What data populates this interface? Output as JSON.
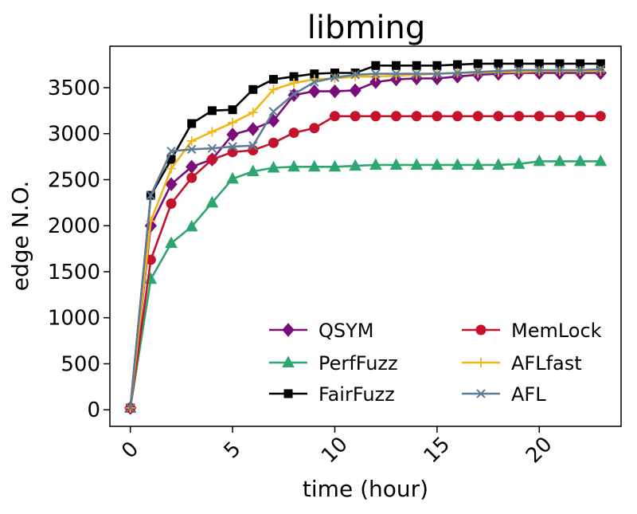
{
  "chart_data": {
    "type": "line",
    "title": "libming",
    "xlabel": "time (hour)",
    "ylabel": "edge N.O.",
    "xlim": [
      -1,
      24
    ],
    "ylim": [
      -180,
      3950
    ],
    "xticks": [
      0,
      5,
      10,
      15,
      20
    ],
    "xtick_labels": [
      "0",
      "5",
      "10",
      "15",
      "20"
    ],
    "yticks": [
      0,
      500,
      1000,
      1500,
      2000,
      2500,
      3000,
      3500
    ],
    "ytick_labels": [
      "0",
      "500",
      "1000",
      "1500",
      "2000",
      "2500",
      "3000",
      "3500"
    ],
    "grid": false,
    "legend_position": "lower-right",
    "x": [
      0,
      1,
      2,
      3,
      4,
      5,
      6,
      7,
      8,
      9,
      10,
      11,
      12,
      13,
      14,
      15,
      16,
      17,
      18,
      19,
      20,
      21,
      22,
      23
    ],
    "series": [
      {
        "name": "QSYM",
        "color": "#7b0d7b",
        "marker": "diamond",
        "values": [
          20,
          2000,
          2450,
          2640,
          2720,
          2990,
          3050,
          3140,
          3420,
          3460,
          3460,
          3470,
          3560,
          3590,
          3600,
          3600,
          3620,
          3640,
          3650,
          3660,
          3660,
          3660,
          3660,
          3660
        ]
      },
      {
        "name": "PerfFuzz",
        "color": "#2ea66f",
        "marker": "triangle",
        "values": [
          20,
          1420,
          1810,
          1990,
          2250,
          2510,
          2590,
          2630,
          2640,
          2640,
          2640,
          2650,
          2660,
          2660,
          2660,
          2660,
          2660,
          2660,
          2660,
          2670,
          2700,
          2700,
          2700,
          2700
        ]
      },
      {
        "name": "FairFuzz",
        "color": "#000000",
        "marker": "square",
        "values": [
          20,
          2330,
          2720,
          3110,
          3250,
          3260,
          3480,
          3590,
          3620,
          3650,
          3660,
          3660,
          3740,
          3740,
          3740,
          3740,
          3750,
          3760,
          3760,
          3760,
          3760,
          3760,
          3760,
          3760
        ]
      },
      {
        "name": "MemLock",
        "color": "#c4132b",
        "marker": "circle",
        "values": [
          20,
          1630,
          2240,
          2520,
          2720,
          2800,
          2820,
          2900,
          3010,
          3060,
          3190,
          3190,
          3190,
          3190,
          3190,
          3190,
          3190,
          3190,
          3190,
          3190,
          3190,
          3190,
          3190,
          3190
        ]
      },
      {
        "name": "AFLfast",
        "color": "#f0b616",
        "marker": "plus",
        "values": [
          20,
          2050,
          2620,
          2920,
          3020,
          3120,
          3230,
          3480,
          3550,
          3590,
          3600,
          3620,
          3620,
          3630,
          3640,
          3650,
          3660,
          3660,
          3670,
          3670,
          3680,
          3680,
          3680,
          3680
        ]
      },
      {
        "name": "AFL",
        "color": "#5e7c96",
        "marker": "x",
        "values": [
          20,
          2330,
          2810,
          2830,
          2840,
          2860,
          2870,
          3240,
          3430,
          3560,
          3610,
          3640,
          3650,
          3650,
          3650,
          3650,
          3660,
          3670,
          3680,
          3690,
          3690,
          3690,
          3690,
          3700
        ]
      }
    ]
  }
}
